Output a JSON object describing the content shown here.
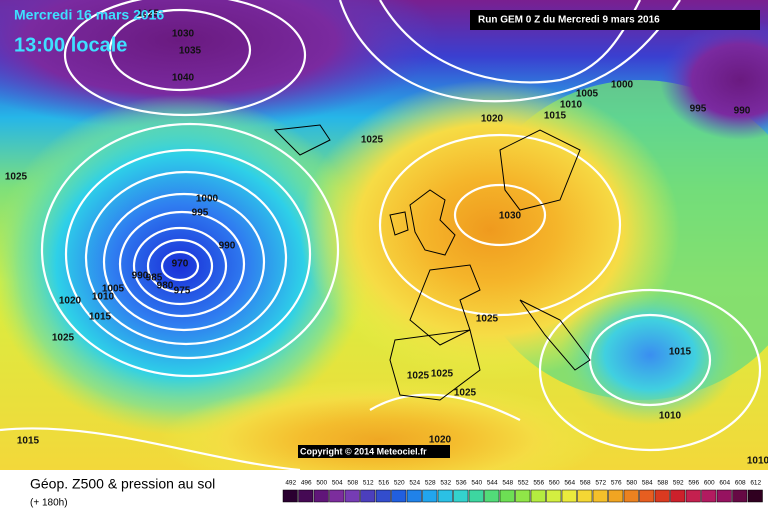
{
  "header": {
    "date": "Mercredi 16 mars 2016",
    "time": "13:00 locale",
    "run": "Run GEM 0 Z du Mercredi 9 mars 2016"
  },
  "isobar_labels": [
    "1025",
    "1030",
    "1035",
    "1040",
    "1025",
    "1000",
    "995",
    "990",
    "970",
    "990",
    "985",
    "980",
    "975",
    "1005",
    "1010",
    "1020",
    "1015",
    "1025",
    "1015",
    "1025",
    "1020",
    "1030",
    "1025",
    "1025",
    "1025",
    "1025",
    "1020",
    "1000",
    "1005",
    "1010",
    "1015",
    "995",
    "990",
    "1015",
    "1010",
    "1010"
  ],
  "copyright": "Copyright © 2014 Meteociel.fr",
  "footer": {
    "title": "Géop. Z500 & pression au sol",
    "subtitle": "(+ 180h)"
  },
  "scale": [
    492,
    496,
    500,
    504,
    508,
    512,
    516,
    520,
    524,
    528,
    532,
    536,
    540,
    544,
    548,
    552,
    556,
    560,
    564,
    568,
    572,
    576,
    580,
    584,
    588,
    592,
    596,
    600,
    604,
    608,
    612
  ]
}
